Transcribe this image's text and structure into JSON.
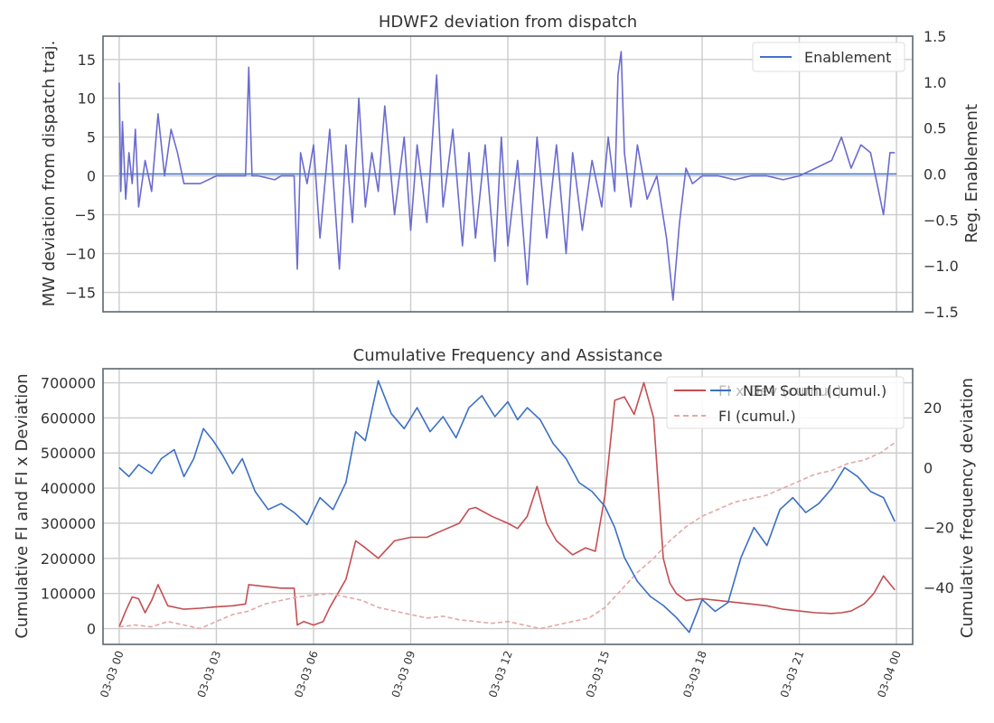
{
  "chart_data": [
    {
      "type": "line",
      "title": "HDWF2 deviation from dispatch",
      "ylabel": "MW deviation from dispatch traj.",
      "y2label": "Reg. Enablement",
      "ylim": [
        -17.5,
        18
      ],
      "y2lim": [
        -1.5,
        1.5
      ],
      "yticks": [
        "−15",
        "−10",
        "−5",
        "0",
        "5",
        "10",
        "15"
      ],
      "yticks_values": [
        -15,
        -10,
        -5,
        0,
        5,
        10,
        15
      ],
      "y2ticks": [
        "−1.5",
        "−1.0",
        "−0.5",
        "0.0",
        "0.5",
        "1.0",
        "1.5"
      ],
      "y2ticks_values": [
        -1.5,
        -1.0,
        -0.5,
        0.0,
        0.5,
        1.0,
        1.5
      ],
      "grid": true,
      "legend": {
        "placement": "top-right",
        "entries": [
          "Enablement"
        ]
      },
      "series": [
        {
          "name": "Enablement",
          "axis": "right",
          "color": "#4472c4",
          "x": [
            0,
            24
          ],
          "y": [
            0.0,
            0.0
          ]
        },
        {
          "axis": "left",
          "color": "#6b6bd0",
          "x": [
            0,
            0.05,
            0.1,
            0.2,
            0.3,
            0.4,
            0.5,
            0.6,
            0.8,
            1.0,
            1.2,
            1.4,
            1.6,
            1.8,
            2.0,
            2.5,
            3.0,
            3.5,
            3.9,
            4.0,
            4.1,
            4.3,
            4.8,
            5.0,
            5.4,
            5.5,
            5.6,
            5.8,
            6.0,
            6.2,
            6.5,
            6.8,
            7.0,
            7.2,
            7.4,
            7.6,
            7.8,
            8.0,
            8.2,
            8.5,
            8.8,
            9.0,
            9.2,
            9.5,
            9.8,
            10.0,
            10.3,
            10.6,
            10.8,
            11.0,
            11.3,
            11.6,
            11.8,
            12.0,
            12.3,
            12.6,
            12.9,
            13.2,
            13.5,
            13.8,
            14.0,
            14.3,
            14.6,
            14.9,
            15.1,
            15.3,
            15.4,
            15.5,
            15.6,
            15.8,
            16.0,
            16.3,
            16.6,
            16.9,
            17.1,
            17.3,
            17.5,
            17.7,
            18.0,
            18.5,
            19.0,
            19.5,
            20.0,
            20.5,
            21.0,
            21.5,
            22.0,
            22.3,
            22.6,
            22.9,
            23.2,
            23.4,
            23.6,
            23.8,
            23.95
          ],
          "y": [
            12,
            -2,
            7,
            -3,
            3,
            -1,
            6,
            -4,
            2,
            -2,
            8,
            0,
            6,
            3,
            -1,
            -1,
            0,
            0,
            0,
            14,
            0,
            0,
            -0.5,
            0,
            0,
            -12,
            3,
            -1,
            4,
            -8,
            6,
            -12,
            4,
            -6,
            10,
            -4,
            3,
            -2,
            9,
            -5,
            5,
            -7,
            4,
            -6,
            13,
            -4,
            6,
            -9,
            3,
            -8,
            4,
            -11,
            5,
            -9,
            2,
            -14,
            5,
            -8,
            4,
            -10,
            3,
            -7,
            2,
            -4,
            5,
            -2,
            13,
            16,
            3,
            -4,
            4,
            -3,
            0,
            -8,
            -16,
            -6,
            1,
            -1,
            0,
            0,
            -0.5,
            0,
            0,
            -0.5,
            0,
            1,
            2,
            5,
            1,
            4,
            3,
            -1,
            -5,
            3,
            3
          ]
        }
      ]
    },
    {
      "type": "line",
      "title": "Cumulative Frequency and Assistance",
      "ylabel": "Cumulative FI and FI x Deviation",
      "y2label": "Cumulative frequency deviation",
      "ylim": [
        -45000,
        740000
      ],
      "y2lim": [
        -59,
        33
      ],
      "yticks": [
        "0",
        "100000",
        "200000",
        "300000",
        "400000",
        "500000",
        "600000",
        "700000"
      ],
      "yticks_values": [
        0,
        100000,
        200000,
        300000,
        400000,
        500000,
        600000,
        700000
      ],
      "y2ticks": [
        "−40",
        "−20",
        "0",
        "20"
      ],
      "y2ticks_values": [
        -40,
        -20,
        0,
        20
      ],
      "xlim": [
        -0.5,
        24.5
      ],
      "xticks": [
        "03-03 00",
        "03-03 03",
        "03-03 06",
        "03-03 09",
        "03-03 12",
        "03-03 15",
        "03-03 18",
        "03-03 21",
        "03-04 00"
      ],
      "xticks_values": [
        0,
        3,
        6,
        9,
        12,
        15,
        18,
        21,
        24
      ],
      "grid": true,
      "legend": {
        "placement": "top-right",
        "entries": [
          "FI x Dev (cumul.)",
          "FI (cumul.)",
          "NEM South (cumul.)"
        ]
      },
      "series": [
        {
          "name": "FI x Dev (cumul.)",
          "axis": "left",
          "color": "#c44e52",
          "style": "solid",
          "x": [
            0,
            0.2,
            0.4,
            0.6,
            0.8,
            1.0,
            1.2,
            1.5,
            2.0,
            2.5,
            3.0,
            3.5,
            3.9,
            4.0,
            4.5,
            5.0,
            5.4,
            5.5,
            5.7,
            6.0,
            6.3,
            6.5,
            7.0,
            7.3,
            7.6,
            8.0,
            8.5,
            9.0,
            9.5,
            10.0,
            10.5,
            10.8,
            11.0,
            11.5,
            12.0,
            12.3,
            12.6,
            12.9,
            13.2,
            13.5,
            14.0,
            14.4,
            14.7,
            15.0,
            15.3,
            15.6,
            15.9,
            16.2,
            16.5,
            16.8,
            17.0,
            17.2,
            17.5,
            18.0,
            18.5,
            19.0,
            19.5,
            20.0,
            20.5,
            21.0,
            21.5,
            22.0,
            22.3,
            22.6,
            23.0,
            23.3,
            23.6,
            23.95
          ],
          "y": [
            5000,
            50000,
            90000,
            85000,
            45000,
            80000,
            125000,
            65000,
            55000,
            58000,
            62000,
            65000,
            70000,
            125000,
            120000,
            115000,
            115000,
            10000,
            20000,
            10000,
            20000,
            60000,
            140000,
            250000,
            230000,
            200000,
            250000,
            260000,
            260000,
            280000,
            300000,
            340000,
            345000,
            320000,
            300000,
            285000,
            320000,
            405000,
            300000,
            250000,
            210000,
            230000,
            220000,
            380000,
            650000,
            660000,
            610000,
            700000,
            600000,
            200000,
            130000,
            100000,
            80000,
            85000,
            80000,
            75000,
            70000,
            65000,
            55000,
            50000,
            45000,
            43000,
            45000,
            50000,
            70000,
            100000,
            150000,
            110000
          ]
        },
        {
          "name": "FI (cumul.)",
          "axis": "left",
          "color": "#e3a7a6",
          "style": "dashed",
          "x": [
            0,
            0.5,
            1.0,
            1.5,
            2.0,
            2.5,
            3.0,
            3.5,
            4.0,
            4.5,
            5.0,
            5.5,
            6.0,
            6.5,
            7.0,
            7.5,
            8.0,
            8.5,
            9.0,
            9.5,
            10.0,
            10.5,
            11.0,
            11.5,
            12.0,
            12.5,
            13.0,
            13.5,
            14.0,
            14.5,
            15.0,
            15.5,
            16.0,
            16.5,
            17.0,
            17.5,
            18.0,
            18.5,
            19.0,
            19.5,
            20.0,
            20.5,
            21.0,
            21.5,
            22.0,
            22.5,
            23.0,
            23.5,
            23.95
          ],
          "y": [
            5000,
            10000,
            5000,
            20000,
            10000,
            0,
            20000,
            40000,
            50000,
            70000,
            80000,
            90000,
            95000,
            100000,
            90000,
            80000,
            60000,
            50000,
            40000,
            30000,
            35000,
            25000,
            20000,
            15000,
            20000,
            10000,
            0,
            10000,
            20000,
            30000,
            60000,
            110000,
            160000,
            200000,
            250000,
            290000,
            320000,
            340000,
            360000,
            370000,
            380000,
            400000,
            420000,
            440000,
            450000,
            470000,
            480000,
            500000,
            530000
          ]
        },
        {
          "name": "NEM South (cumul.)",
          "axis": "right",
          "color": "#3a6fc4",
          "style": "solid",
          "x": [
            0,
            0.3,
            0.6,
            1.0,
            1.3,
            1.7,
            2.0,
            2.3,
            2.6,
            2.9,
            3.2,
            3.5,
            3.8,
            4.2,
            4.6,
            5.0,
            5.4,
            5.8,
            6.2,
            6.6,
            7.0,
            7.3,
            7.6,
            8.0,
            8.4,
            8.8,
            9.2,
            9.6,
            10.0,
            10.4,
            10.8,
            11.2,
            11.6,
            12.0,
            12.3,
            12.6,
            13.0,
            13.4,
            13.8,
            14.2,
            14.6,
            15.0,
            15.3,
            15.6,
            16.0,
            16.4,
            16.8,
            17.2,
            17.6,
            18.0,
            18.4,
            18.8,
            19.2,
            19.6,
            20.0,
            20.4,
            20.8,
            21.2,
            21.6,
            22.0,
            22.4,
            22.8,
            23.2,
            23.6,
            23.95
          ],
          "y": [
            0,
            -3,
            1,
            -2,
            3,
            6,
            -3,
            3,
            13,
            9,
            4,
            -2,
            3,
            -8,
            -14,
            -12,
            -15,
            -19,
            -10,
            -14,
            -5,
            12,
            9,
            29,
            18,
            13,
            20,
            12,
            17,
            10,
            20,
            24,
            17,
            22,
            16,
            20,
            16,
            8,
            3,
            -5,
            -8,
            -13,
            -20,
            -30,
            -38,
            -43,
            -46,
            -50,
            -55,
            -44,
            -48,
            -45,
            -30,
            -20,
            -26,
            -14,
            -10,
            -15,
            -12,
            -7,
            0,
            -3,
            -8,
            -10,
            -18
          ]
        }
      ]
    }
  ]
}
